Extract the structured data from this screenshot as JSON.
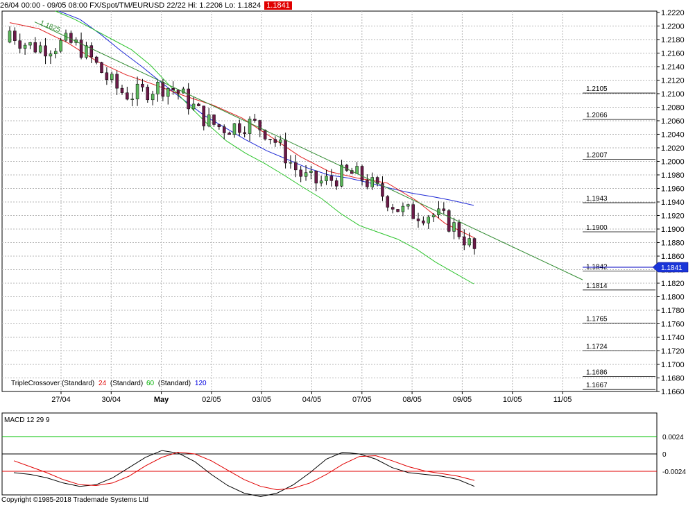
{
  "header": {
    "range": "26/04 00:00 - 09/05 08:00",
    "instrument": "FX/Spot/TM/EURUSD 22/22",
    "hi": "Hi: 1.2206",
    "lo": "Lo: 1.1824",
    "last_badge": "1.1841"
  },
  "copyright": "Copyright ©1985-2018 Trademade Systems Ltd",
  "chart_data": [
    {
      "type": "candlestick",
      "title": "",
      "ylim": [
        1.166,
        1.2222
      ],
      "y_ticks": [
        "1.2220",
        "1.2200",
        "1.2180",
        "1.2160",
        "1.2140",
        "1.2120",
        "1.2100",
        "1.2080",
        "1.2060",
        "1.2040",
        "1.2020",
        "1.2000",
        "1.1980",
        "1.1960",
        "1.1940",
        "1.1920",
        "1.1900",
        "1.1880",
        "1.1860",
        "1.1840",
        "1.1820",
        "1.1800",
        "1.1780",
        "1.1760",
        "1.1740",
        "1.1720",
        "1.1700",
        "1.1680",
        "1.1660"
      ],
      "x_ticks": [
        "27/04",
        "30/04",
        "May",
        "02/05",
        "03/05",
        "04/05",
        "07/05",
        "08/05",
        "09/05",
        "10/05",
        "11/05"
      ],
      "bold_x_tick": "May",
      "trendline_label": "1.1825",
      "price_tag": "1.1841",
      "indicator_legend": {
        "name": "TripleCrossover (Standard)",
        "items": [
          {
            "value": "24",
            "label": "(Standard)",
            "color": "#e00000"
          },
          {
            "value": "60",
            "label": "(Standard)",
            "color": "#00b000"
          },
          {
            "value": "120",
            "label": "",
            "color": "#0000e0"
          }
        ]
      },
      "fib_levels": [
        {
          "label": "1.2105",
          "value": 1.2105
        },
        {
          "label": "1.2066",
          "value": 1.2066
        },
        {
          "label": "1.2007",
          "value": 1.2007
        },
        {
          "label": "1.1943",
          "value": 1.1943
        },
        {
          "label": "1.1900",
          "value": 1.19
        },
        {
          "label": "1.1842",
          "value": 1.1842
        },
        {
          "label": "1.1814",
          "value": 1.1814
        },
        {
          "label": "1.1765",
          "value": 1.1765
        },
        {
          "label": "1.1724",
          "value": 1.1724
        },
        {
          "label": "1.1686",
          "value": 1.1686
        },
        {
          "label": "1.1667",
          "value": 1.1667
        }
      ],
      "ma_24": [
        1.2205,
        1.2196,
        1.2175,
        1.2148,
        1.2128,
        1.2113,
        1.2097,
        1.2083,
        1.2064,
        1.2036,
        1.2007,
        1.1985,
        1.1975,
        1.1968,
        1.1942,
        1.1908,
        1.1887
      ],
      "ma_60": [
        1.2222,
        1.221,
        1.2195,
        1.218,
        1.2165,
        1.2142,
        1.2112,
        1.2083,
        1.2055,
        1.203,
        1.2012,
        1.1997,
        1.198,
        1.1962,
        1.1945,
        1.1923,
        1.1905,
        1.1895,
        1.1885,
        1.187,
        1.1851,
        1.1835,
        1.1819
      ],
      "ma_120": [
        1.2222,
        1.221,
        1.2188,
        1.2163,
        1.214,
        1.2115,
        1.2091,
        1.2068,
        1.205,
        1.2032,
        1.2016,
        1.2003,
        1.199,
        1.198,
        1.1975,
        1.1968,
        1.196,
        1.1953,
        1.1948,
        1.1942,
        1.1935
      ],
      "trendline": [
        1.2206,
        1.1825
      ]
    },
    {
      "type": "line",
      "title": "MACD 12 29 9",
      "y_ticks": [
        "0.0024",
        "0",
        "-0.0024"
      ],
      "ylim": [
        -0.0048,
        0.0048
      ],
      "series": [
        {
          "name": "",
          "color": "#000000",
          "values": [
            -0.0022,
            -0.0024,
            -0.0028,
            -0.0034,
            -0.0038,
            -0.0036,
            -0.0028,
            -0.0016,
            -0.0004,
            0.0004,
            0.0001,
            -0.0009,
            -0.0024,
            -0.0037,
            -0.0046,
            -0.005,
            -0.0046,
            -0.0036,
            -0.0022,
            -0.0006,
            0.0002,
            0,
            -0.0006,
            -0.0016,
            -0.0022,
            -0.0024,
            -0.0026,
            -0.003,
            -0.0038
          ]
        },
        {
          "name": "",
          "color": "#e00000",
          "values": [
            -0.0008,
            -0.0015,
            -0.0022,
            -0.003,
            -0.0036,
            -0.0037,
            -0.0034,
            -0.0026,
            -0.0014,
            -0.0004,
            0.0002,
            0,
            -0.0008,
            -0.0019,
            -0.003,
            -0.0038,
            -0.0042,
            -0.004,
            -0.0034,
            -0.0024,
            -0.0012,
            -0.0003,
            -0.0002,
            -0.0008,
            -0.0015,
            -0.002,
            -0.0023,
            -0.0026,
            -0.0031
          ]
        }
      ]
    }
  ]
}
